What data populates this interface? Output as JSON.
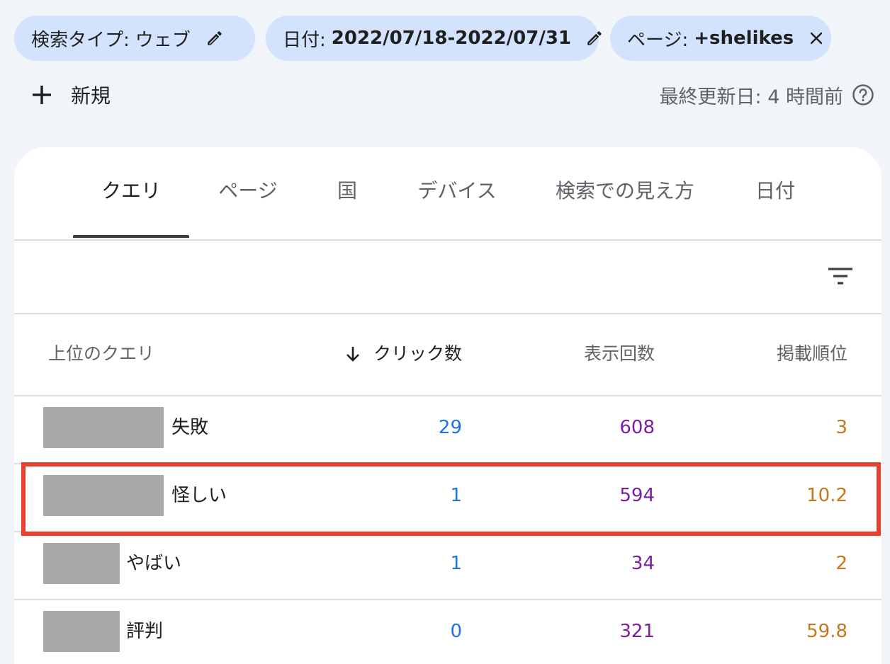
{
  "colors": {
    "background": "#f1f4f9",
    "chip": "#d3e3fd",
    "clicks": "#1a73e8",
    "impressions": "#7b1fa2",
    "position": "#c5771b",
    "highlight": "#e8412f"
  },
  "filters": [
    {
      "key": "検索タイプ:",
      "value": "ウェブ",
      "icon": "pencil-icon"
    },
    {
      "key": "日付:",
      "value": "2022/07/18-2022/07/31",
      "icon": "pencil-icon"
    },
    {
      "key": "ページ:",
      "value": "+shelikes",
      "icon": "close-icon"
    }
  ],
  "toolbar": {
    "new_label": "新規",
    "updated_text": "最終更新日: 4 時間前"
  },
  "tabs": [
    {
      "label": "クエリ",
      "active": true
    },
    {
      "label": "ページ",
      "active": false
    },
    {
      "label": "国",
      "active": false
    },
    {
      "label": "デバイス",
      "active": false
    },
    {
      "label": "検索での見え方",
      "active": false
    },
    {
      "label": "日付",
      "active": false
    }
  ],
  "table": {
    "headers": {
      "query": "上位のクエリ",
      "clicks": "クリック数",
      "impressions": "表示回数",
      "position": "掲載順位"
    },
    "rows": [
      {
        "query": "失敗",
        "clicks": "29",
        "impressions": "608",
        "position": "3"
      },
      {
        "query": "怪しい",
        "clicks": "1",
        "impressions": "594",
        "position": "10.2"
      },
      {
        "query": "やばい",
        "clicks": "1",
        "impressions": "34",
        "position": "2"
      },
      {
        "query": "評判",
        "clicks": "0",
        "impressions": "321",
        "position": "59.8"
      }
    ]
  }
}
